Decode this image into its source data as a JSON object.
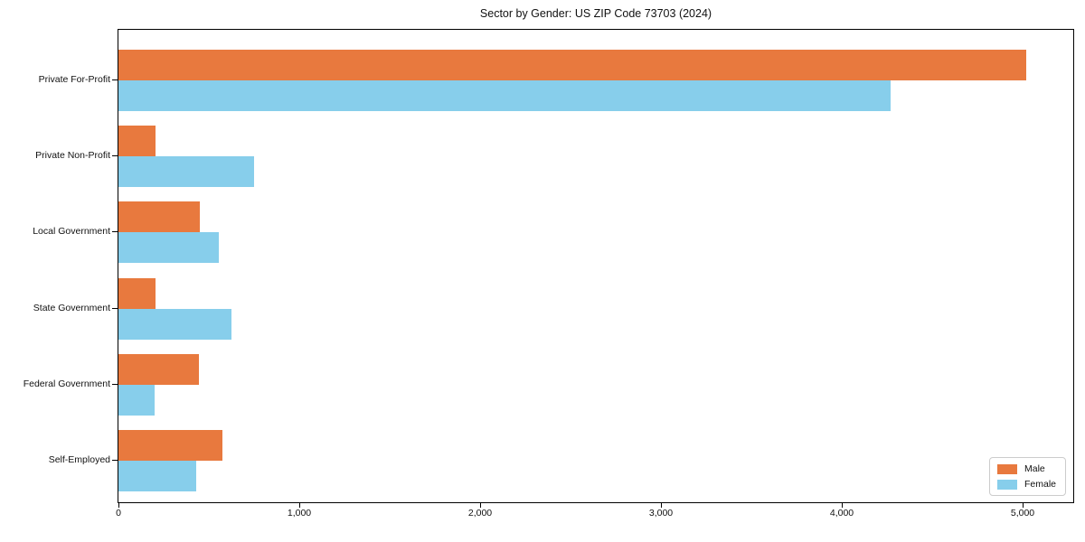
{
  "chart_data": {
    "type": "bar",
    "orientation": "horizontal",
    "title": "Sector by Gender: US ZIP Code 73703 (2024)",
    "categories": [
      "Private For-Profit",
      "Private Non-Profit",
      "Local Government",
      "State Government",
      "Federal Government",
      "Self-Employed"
    ],
    "series": [
      {
        "name": "Male",
        "color": "#e8793e",
        "values": [
          5020,
          205,
          450,
          205,
          445,
          575
        ]
      },
      {
        "name": "Female",
        "color": "#87ceeb",
        "values": [
          4270,
          750,
          555,
          625,
          200,
          430
        ]
      }
    ],
    "xlabel": "",
    "ylabel": "",
    "xlim": [
      0,
      5280
    ],
    "xticks": [
      0,
      1000,
      2000,
      3000,
      4000,
      5000
    ],
    "xtick_labels": [
      "0",
      "1,000",
      "2,000",
      "3,000",
      "4,000",
      "5,000"
    ],
    "grid": false,
    "legend_position": "lower right",
    "background_color": "#ffffff",
    "spine_color": "#000000"
  }
}
